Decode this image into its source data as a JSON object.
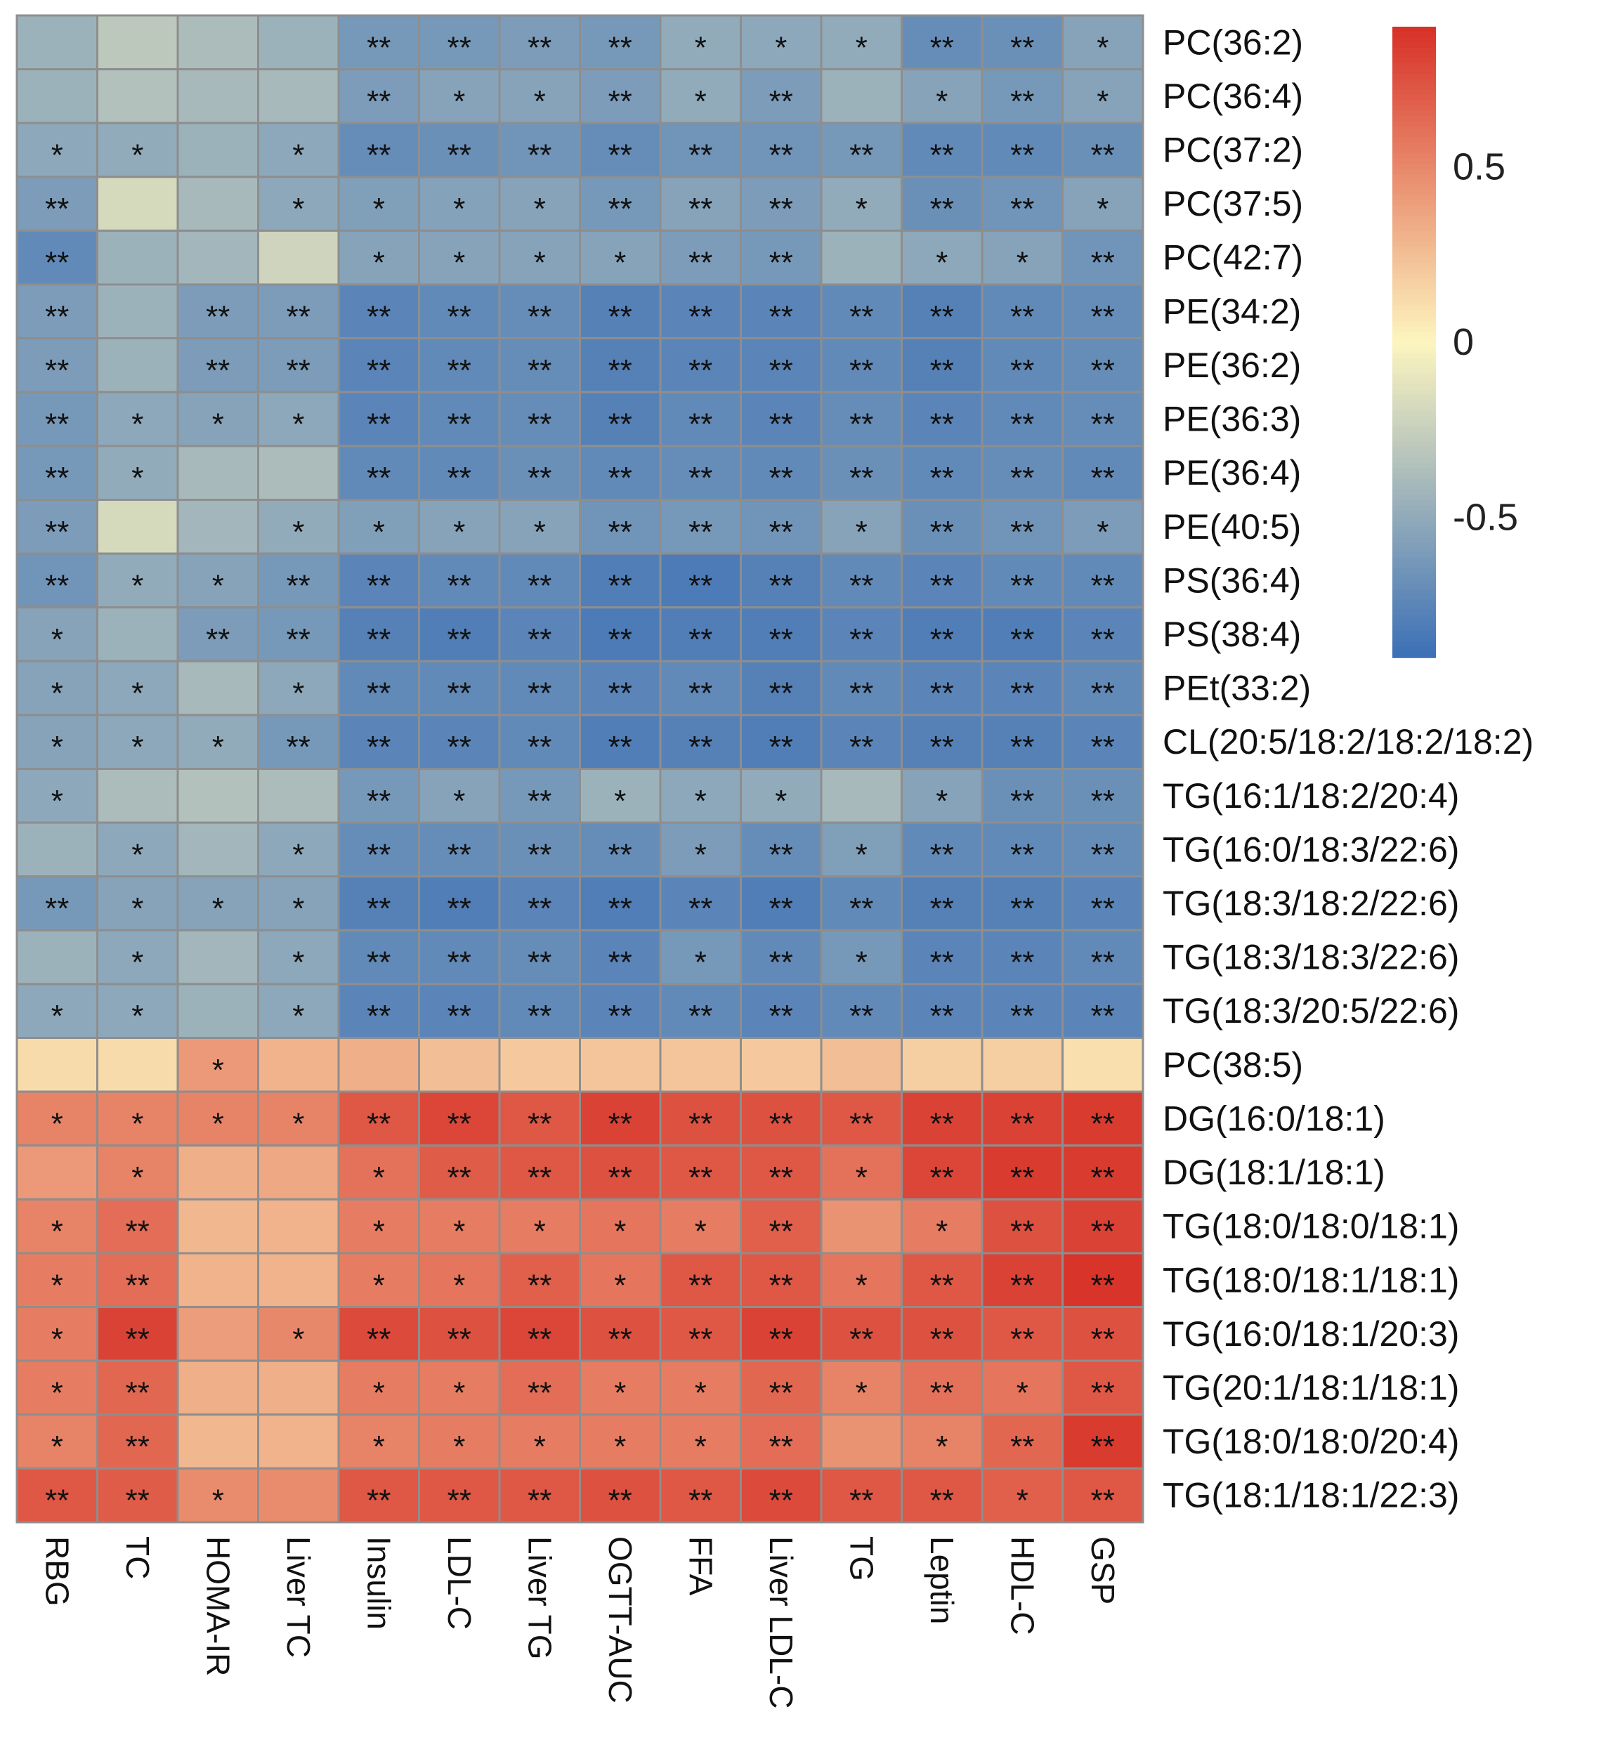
{
  "chart_data": {
    "type": "heatmap",
    "title": "",
    "columns": [
      "RBG",
      "TC",
      "HOMA-IR",
      "Liver TC",
      "Insulin",
      "LDL-C",
      "Liver TG",
      "OGTT-AUC",
      "FFA",
      "Liver LDL-C",
      "TG",
      "Leptin",
      "HDL-C",
      "GSP"
    ],
    "rows": [
      "PC(36:2)",
      "PC(36:4)",
      "PC(37:2)",
      "PC(37:5)",
      "PC(42:7)",
      "PE(34:2)",
      "PE(36:2)",
      "PE(36:3)",
      "PE(36:4)",
      "PE(40:5)",
      "PS(36:4)",
      "PS(38:4)",
      "PEt(33:2)",
      "CL(20:5/18:2/18:2/18:2)",
      "TG(16:1/18:2/20:4)",
      "TG(16:0/18:3/22:6)",
      "TG(18:3/18:2/22:6)",
      "TG(18:3/18:3/22:6)",
      "TG(18:3/20:5/22:6)",
      "PC(38:5)",
      "DG(16:0/18:1)",
      "DG(18:1/18:1)",
      "TG(18:0/18:0/18:1)",
      "TG(18:0/18:1/18:1)",
      "TG(16:0/18:1/20:3)",
      "TG(20:1/18:1/18:1)",
      "TG(18:0/18:0/20:4)",
      "TG(18:1/18:1/22:3)"
    ],
    "values": [
      [
        -0.45,
        -0.3,
        -0.38,
        -0.45,
        -0.62,
        -0.62,
        -0.6,
        -0.62,
        -0.5,
        -0.52,
        -0.5,
        -0.7,
        -0.68,
        -0.55
      ],
      [
        -0.45,
        -0.35,
        -0.4,
        -0.4,
        -0.6,
        -0.55,
        -0.55,
        -0.6,
        -0.5,
        -0.6,
        -0.45,
        -0.55,
        -0.62,
        -0.55
      ],
      [
        -0.52,
        -0.5,
        -0.45,
        -0.52,
        -0.7,
        -0.68,
        -0.65,
        -0.7,
        -0.65,
        -0.65,
        -0.62,
        -0.72,
        -0.72,
        -0.68
      ],
      [
        -0.6,
        -0.18,
        -0.4,
        -0.52,
        -0.58,
        -0.56,
        -0.55,
        -0.62,
        -0.55,
        -0.6,
        -0.5,
        -0.68,
        -0.65,
        -0.55
      ],
      [
        -0.72,
        -0.45,
        -0.42,
        -0.22,
        -0.55,
        -0.55,
        -0.55,
        -0.55,
        -0.6,
        -0.62,
        -0.45,
        -0.52,
        -0.55,
        -0.65
      ],
      [
        -0.6,
        -0.45,
        -0.6,
        -0.6,
        -0.75,
        -0.72,
        -0.7,
        -0.78,
        -0.75,
        -0.75,
        -0.72,
        -0.78,
        -0.72,
        -0.7
      ],
      [
        -0.6,
        -0.45,
        -0.6,
        -0.6,
        -0.75,
        -0.72,
        -0.7,
        -0.78,
        -0.75,
        -0.75,
        -0.72,
        -0.78,
        -0.72,
        -0.7
      ],
      [
        -0.62,
        -0.52,
        -0.55,
        -0.52,
        -0.75,
        -0.72,
        -0.7,
        -0.78,
        -0.72,
        -0.75,
        -0.7,
        -0.75,
        -0.72,
        -0.7
      ],
      [
        -0.62,
        -0.5,
        -0.4,
        -0.38,
        -0.72,
        -0.72,
        -0.68,
        -0.72,
        -0.7,
        -0.72,
        -0.68,
        -0.72,
        -0.7,
        -0.72
      ],
      [
        -0.6,
        -0.18,
        -0.42,
        -0.5,
        -0.58,
        -0.55,
        -0.55,
        -0.65,
        -0.62,
        -0.65,
        -0.55,
        -0.68,
        -0.65,
        -0.6
      ],
      [
        -0.65,
        -0.5,
        -0.55,
        -0.62,
        -0.75,
        -0.72,
        -0.72,
        -0.8,
        -0.82,
        -0.78,
        -0.72,
        -0.75,
        -0.72,
        -0.72
      ],
      [
        -0.55,
        -0.45,
        -0.6,
        -0.62,
        -0.78,
        -0.8,
        -0.75,
        -0.82,
        -0.8,
        -0.8,
        -0.75,
        -0.8,
        -0.8,
        -0.75
      ],
      [
        -0.55,
        -0.52,
        -0.4,
        -0.52,
        -0.72,
        -0.72,
        -0.72,
        -0.75,
        -0.72,
        -0.78,
        -0.72,
        -0.75,
        -0.75,
        -0.72
      ],
      [
        -0.55,
        -0.52,
        -0.5,
        -0.62,
        -0.75,
        -0.75,
        -0.72,
        -0.8,
        -0.78,
        -0.8,
        -0.75,
        -0.78,
        -0.78,
        -0.75
      ],
      [
        -0.52,
        -0.38,
        -0.35,
        -0.38,
        -0.62,
        -0.55,
        -0.62,
        -0.45,
        -0.52,
        -0.5,
        -0.4,
        -0.55,
        -0.68,
        -0.68
      ],
      [
        -0.45,
        -0.52,
        -0.42,
        -0.52,
        -0.7,
        -0.7,
        -0.68,
        -0.7,
        -0.6,
        -0.7,
        -0.58,
        -0.72,
        -0.72,
        -0.7
      ],
      [
        -0.62,
        -0.55,
        -0.55,
        -0.55,
        -0.78,
        -0.8,
        -0.75,
        -0.8,
        -0.75,
        -0.8,
        -0.72,
        -0.78,
        -0.78,
        -0.75
      ],
      [
        -0.45,
        -0.52,
        -0.42,
        -0.52,
        -0.72,
        -0.72,
        -0.7,
        -0.75,
        -0.62,
        -0.72,
        -0.62,
        -0.75,
        -0.75,
        -0.72
      ],
      [
        -0.52,
        -0.52,
        -0.45,
        -0.52,
        -0.75,
        -0.75,
        -0.72,
        -0.75,
        -0.72,
        -0.75,
        -0.72,
        -0.75,
        -0.75,
        -0.75
      ],
      [
        0.12,
        0.12,
        0.42,
        0.3,
        0.32,
        0.25,
        0.2,
        0.22,
        0.22,
        0.2,
        0.25,
        0.18,
        0.18,
        0.1
      ],
      [
        0.52,
        0.52,
        0.52,
        0.52,
        0.72,
        0.8,
        0.72,
        0.82,
        0.75,
        0.75,
        0.72,
        0.82,
        0.82,
        0.85
      ],
      [
        0.42,
        0.52,
        0.32,
        0.35,
        0.6,
        0.7,
        0.72,
        0.75,
        0.72,
        0.72,
        0.6,
        0.8,
        0.85,
        0.85
      ],
      [
        0.52,
        0.62,
        0.28,
        0.3,
        0.55,
        0.55,
        0.55,
        0.58,
        0.55,
        0.68,
        0.45,
        0.55,
        0.75,
        0.82
      ],
      [
        0.55,
        0.62,
        0.3,
        0.3,
        0.55,
        0.58,
        0.68,
        0.58,
        0.72,
        0.72,
        0.58,
        0.72,
        0.82,
        0.88
      ],
      [
        0.55,
        0.82,
        0.4,
        0.5,
        0.78,
        0.75,
        0.8,
        0.75,
        0.72,
        0.82,
        0.75,
        0.75,
        0.72,
        0.75
      ],
      [
        0.55,
        0.65,
        0.32,
        0.32,
        0.55,
        0.55,
        0.62,
        0.55,
        0.55,
        0.65,
        0.52,
        0.6,
        0.58,
        0.72
      ],
      [
        0.52,
        0.65,
        0.28,
        0.3,
        0.52,
        0.55,
        0.55,
        0.55,
        0.55,
        0.62,
        0.45,
        0.52,
        0.65,
        0.85
      ],
      [
        0.72,
        0.7,
        0.48,
        0.48,
        0.72,
        0.72,
        0.72,
        0.75,
        0.72,
        0.78,
        0.72,
        0.72,
        0.68,
        0.72
      ]
    ],
    "significance": [
      [
        "",
        "",
        "",
        "",
        "**",
        "**",
        "**",
        "**",
        "*",
        "*",
        "*",
        "**",
        "**",
        "*"
      ],
      [
        "",
        "",
        "",
        "",
        "**",
        "*",
        "*",
        "**",
        "*",
        "**",
        "",
        "*",
        "**",
        "*"
      ],
      [
        "*",
        "*",
        "",
        "*",
        "**",
        "**",
        "**",
        "**",
        "**",
        "**",
        "**",
        "**",
        "**",
        "**"
      ],
      [
        "**",
        "",
        "",
        "*",
        "*",
        "*",
        "*",
        "**",
        "**",
        "**",
        "*",
        "**",
        "**",
        "*"
      ],
      [
        "**",
        "",
        "",
        "",
        "*",
        "*",
        "*",
        "*",
        "**",
        "**",
        "",
        "*",
        "*",
        "**"
      ],
      [
        "**",
        "",
        "**",
        "**",
        "**",
        "**",
        "**",
        "**",
        "**",
        "**",
        "**",
        "**",
        "**",
        "**"
      ],
      [
        "**",
        "",
        "**",
        "**",
        "**",
        "**",
        "**",
        "**",
        "**",
        "**",
        "**",
        "**",
        "**",
        "**"
      ],
      [
        "**",
        "*",
        "*",
        "*",
        "**",
        "**",
        "**",
        "**",
        "**",
        "**",
        "**",
        "**",
        "**",
        "**"
      ],
      [
        "**",
        "*",
        "",
        "",
        "**",
        "**",
        "**",
        "**",
        "**",
        "**",
        "**",
        "**",
        "**",
        "**"
      ],
      [
        "**",
        "",
        "",
        "*",
        "*",
        "*",
        "*",
        "**",
        "**",
        "**",
        "*",
        "**",
        "**",
        "*"
      ],
      [
        "**",
        "*",
        "*",
        "**",
        "**",
        "**",
        "**",
        "**",
        "**",
        "**",
        "**",
        "**",
        "**",
        "**"
      ],
      [
        "*",
        "",
        "**",
        "**",
        "**",
        "**",
        "**",
        "**",
        "**",
        "**",
        "**",
        "**",
        "**",
        "**"
      ],
      [
        "*",
        "*",
        "",
        "*",
        "**",
        "**",
        "**",
        "**",
        "**",
        "**",
        "**",
        "**",
        "**",
        "**"
      ],
      [
        "*",
        "*",
        "*",
        "**",
        "**",
        "**",
        "**",
        "**",
        "**",
        "**",
        "**",
        "**",
        "**",
        "**"
      ],
      [
        "*",
        "",
        "",
        "",
        "**",
        "*",
        "**",
        "*",
        "*",
        "*",
        "",
        "*",
        "**",
        "**"
      ],
      [
        "",
        "*",
        "",
        "*",
        "**",
        "**",
        "**",
        "**",
        "*",
        "**",
        "*",
        "**",
        "**",
        "**"
      ],
      [
        "**",
        "*",
        "*",
        "*",
        "**",
        "**",
        "**",
        "**",
        "**",
        "**",
        "**",
        "**",
        "**",
        "**"
      ],
      [
        "",
        "*",
        "",
        "*",
        "**",
        "**",
        "**",
        "**",
        "*",
        "**",
        "*",
        "**",
        "**",
        "**"
      ],
      [
        "*",
        "*",
        "",
        "*",
        "**",
        "**",
        "**",
        "**",
        "**",
        "**",
        "**",
        "**",
        "**",
        "**"
      ],
      [
        "",
        "",
        "*",
        "",
        "",
        "",
        "",
        "",
        "",
        "",
        "",
        "",
        "",
        ""
      ],
      [
        "*",
        "*",
        "*",
        "*",
        "**",
        "**",
        "**",
        "**",
        "**",
        "**",
        "**",
        "**",
        "**",
        "**"
      ],
      [
        "",
        "*",
        "",
        "",
        "*",
        "**",
        "**",
        "**",
        "**",
        "**",
        "*",
        "**",
        "**",
        "**"
      ],
      [
        "*",
        "**",
        "",
        "",
        "*",
        "*",
        "*",
        "*",
        "*",
        "**",
        "",
        "*",
        "**",
        "**"
      ],
      [
        "*",
        "**",
        "",
        "",
        "*",
        "*",
        "**",
        "*",
        "**",
        "**",
        "*",
        "**",
        "**",
        "**"
      ],
      [
        "*",
        "**",
        "",
        "*",
        "**",
        "**",
        "**",
        "**",
        "**",
        "**",
        "**",
        "**",
        "**",
        "**"
      ],
      [
        "*",
        "**",
        "",
        "",
        "*",
        "*",
        "**",
        "*",
        "*",
        "**",
        "*",
        "**",
        "*",
        "**"
      ],
      [
        "*",
        "**",
        "",
        "",
        "*",
        "*",
        "*",
        "*",
        "*",
        "**",
        "",
        "*",
        "**",
        "**"
      ],
      [
        "**",
        "**",
        "*",
        "",
        "**",
        "**",
        "**",
        "**",
        "**",
        "**",
        "**",
        "**",
        "*",
        "**"
      ]
    ],
    "colorbar": {
      "min": -0.9,
      "max": 0.9,
      "ticks": [
        0.5,
        0,
        -0.5
      ],
      "tick_labels": [
        "0.5",
        "0",
        "-0.5"
      ],
      "colors": {
        "low": "#3b6fb6",
        "mid": "#fdf5bf",
        "high": "#d73027"
      }
    },
    "legend_position": "top-right"
  }
}
